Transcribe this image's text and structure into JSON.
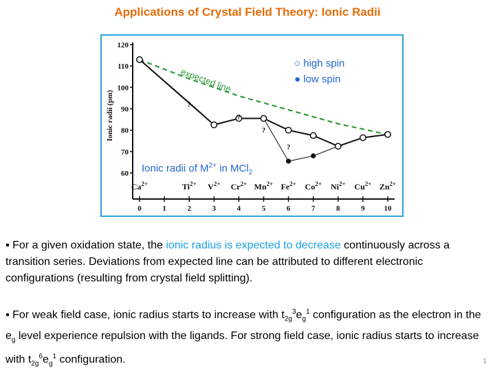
{
  "slide": {
    "title": "Applications of Crystal Field Theory: Ionic Radii",
    "page_number": "1",
    "bullet1": {
      "prefix": "▪ For a given oxidation state, the ",
      "highlight": "ionic radius is expected to decrease",
      "suffix": " continuously across a transition series. Deviations from expected line can be attributed to different electronic configurations (resulting from crystal field splitting)."
    },
    "bullet2": {
      "part1": "▪ For weak field case, ionic radius starts to increase with t",
      "sub1": "2g",
      "sup1": "3",
      "part2": "e",
      "sub2": "g",
      "sup2": "1",
      "part3": " configuration as the electron in the e",
      "sub3": "g",
      "part4": " level experience repulsion with the ligands. For strong field case, ionic radius starts to increase with t",
      "sub4": "2g",
      "sup4": "6",
      "part5": "e",
      "sub5": "g",
      "sup5": "1",
      "part6": " configuration."
    }
  },
  "colors": {
    "title": "#E46C0A",
    "highlight": "#1AA0E8",
    "frame": "#29A3DC",
    "expected_line": "#2E9B3A",
    "chart_label": "#2266CC"
  },
  "chart_data": {
    "type": "line",
    "ylabel": "Ionic radii (pm)",
    "ylim": [
      60,
      120
    ],
    "yticks": [
      60,
      70,
      80,
      90,
      100,
      110,
      120
    ],
    "x": [
      0,
      1,
      2,
      3,
      4,
      5,
      6,
      7,
      8,
      9,
      10
    ],
    "xlim": [
      0,
      10
    ],
    "ions": [
      "Ca2+",
      "",
      "Ti2+",
      "V2+",
      "Cr2+",
      "Mn2+",
      "Fe2+",
      "Co2+",
      "Ni2+",
      "Cu2+",
      "Zn2+"
    ],
    "annotation": "Ionic radii of M2+ in MCl2",
    "annotation_parts": {
      "a": "Ionic radii of M",
      "sup": "2+",
      "b": " in MCl",
      "sub": "2"
    },
    "expected_label": "expected line",
    "legend": [
      "○ high spin",
      "● low spin"
    ],
    "series": [
      {
        "name": "high spin",
        "points": [
          [
            0,
            113
          ],
          [
            3,
            82.5
          ],
          [
            4,
            85.5
          ],
          [
            5,
            85.5
          ],
          [
            6,
            80
          ],
          [
            7,
            77.5
          ],
          [
            8,
            72.5
          ],
          [
            9,
            76.5
          ],
          [
            10,
            78
          ]
        ]
      },
      {
        "name": "low spin",
        "points": [
          [
            5,
            85.5
          ],
          [
            6,
            65.5
          ],
          [
            7,
            68
          ],
          [
            8,
            72.5
          ]
        ]
      },
      {
        "name": "expected line",
        "points": [
          [
            0,
            113
          ],
          [
            2,
            104
          ],
          [
            4,
            96
          ],
          [
            6,
            89.5
          ],
          [
            8,
            83
          ],
          [
            10,
            78
          ]
        ]
      }
    ],
    "question_marks": [
      [
        2,
        91
      ],
      [
        4,
        85
      ],
      [
        5,
        79
      ],
      [
        6,
        71
      ]
    ],
    "question_label": "?"
  }
}
